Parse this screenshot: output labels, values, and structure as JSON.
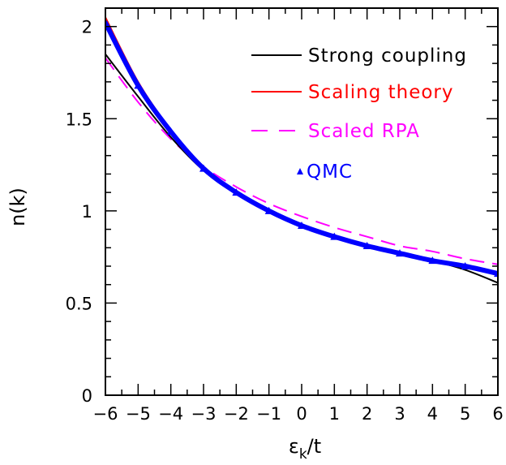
{
  "chart_data": {
    "type": "line",
    "title": "",
    "xlabel": "ε",
    "xlabel_sub": "k",
    "xlabel_suffix": "/t",
    "ylabel": "n(k)",
    "xlim": [
      -6,
      6
    ],
    "ylim": [
      0,
      2.1
    ],
    "grid": false,
    "legend_position": "top-right",
    "x_ticks": [
      -6,
      -5,
      -4,
      -3,
      -2,
      -1,
      0,
      1,
      2,
      3,
      4,
      5,
      6
    ],
    "y_ticks": [
      0,
      0.5,
      1,
      1.5,
      2
    ],
    "x_tick_labels": [
      "−6",
      "−5",
      "−4",
      "−3",
      "−2",
      "−1",
      "0",
      "1",
      "2",
      "3",
      "4",
      "5",
      "6"
    ],
    "y_tick_labels": [
      "0",
      "0.5",
      "1",
      "1.5",
      "2"
    ],
    "x": [
      -6,
      -5,
      -4,
      -3,
      -2,
      -1,
      0,
      1,
      2,
      3,
      4,
      5,
      6
    ],
    "series": [
      {
        "name": "Strong coupling",
        "color": "#000000",
        "style": "solid",
        "values": [
          1.85,
          1.62,
          1.4,
          1.22,
          1.1,
          1.0,
          0.92,
          0.86,
          0.81,
          0.77,
          0.73,
          0.68,
          0.61
        ]
      },
      {
        "name": "Scaling theory",
        "color": "#ff0000",
        "style": "solid",
        "values": [
          2.05,
          1.7,
          1.44,
          1.24,
          1.1,
          1.0,
          0.92,
          0.86,
          0.81,
          0.77,
          0.73,
          0.7,
          0.65
        ]
      },
      {
        "name": "Scaled RPA",
        "color": "#ff00ff",
        "style": "dashed",
        "values": [
          1.83,
          1.59,
          1.39,
          1.24,
          1.13,
          1.04,
          0.97,
          0.91,
          0.86,
          0.81,
          0.78,
          0.74,
          0.71
        ]
      },
      {
        "name": "QMC",
        "color": "#0000ff",
        "style": "markers",
        "marker": "triangle",
        "values": [
          2.02,
          1.68,
          1.43,
          1.23,
          1.1,
          1.0,
          0.92,
          0.86,
          0.81,
          0.77,
          0.73,
          0.7,
          0.66
        ]
      }
    ]
  }
}
